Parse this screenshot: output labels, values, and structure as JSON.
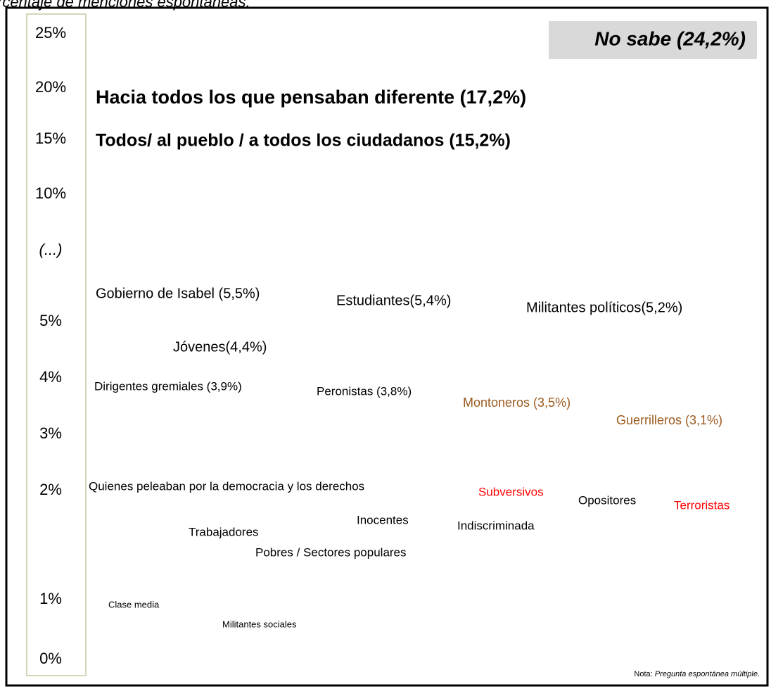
{
  "title": "rcentaje de menciones espontáneas.",
  "axis_labels": [
    "25%",
    "20%",
    "15%",
    "10%",
    "(...)",
    "5%",
    "4%",
    "3%",
    "2%",
    "1%",
    "0%"
  ],
  "items": [
    {
      "text": "No sabe (24,2%)",
      "color": "#000000"
    },
    {
      "text": "Hacia todos los que pensaban diferente (17,2%)",
      "color": "#000000"
    },
    {
      "text": "Todos/ al pueblo / a todos los ciudadanos (15,2%)",
      "color": "#000000"
    },
    {
      "text": "Gobierno de Isabel (5,5%)",
      "color": "#000000"
    },
    {
      "text": "Estudiantes(5,4%)",
      "color": "#000000"
    },
    {
      "text": "Militantes políticos(5,2%)",
      "color": "#000000"
    },
    {
      "text": "Jóvenes(4,4%)",
      "color": "#000000"
    },
    {
      "text": "Dirigentes gremiales (3,9%)",
      "color": "#000000"
    },
    {
      "text": "Peronistas (3,8%)",
      "color": "#000000"
    },
    {
      "text": "Montoneros (3,5%)",
      "color": "#9c5a1e"
    },
    {
      "text": "Guerrilleros (3,1%)",
      "color": "#9c5a1e"
    },
    {
      "text": "Quienes peleaban por la democracia y los derechos",
      "color": "#000000"
    },
    {
      "text": "Subversivos",
      "color": "#ff0000"
    },
    {
      "text": "Opositores",
      "color": "#000000"
    },
    {
      "text": "Terroristas",
      "color": "#ff0000"
    },
    {
      "text": "Inocentes",
      "color": "#000000"
    },
    {
      "text": "Indiscriminada",
      "color": "#000000"
    },
    {
      "text": "Trabajadores",
      "color": "#000000"
    },
    {
      "text": "Pobres / Sectores populares",
      "color": "#000000"
    },
    {
      "text": "Clase media",
      "color": "#000000"
    },
    {
      "text": "Militantes sociales",
      "color": "#000000"
    }
  ],
  "note": {
    "label": "Nota:",
    "text": "Pregunta espontánea múltiple."
  }
}
